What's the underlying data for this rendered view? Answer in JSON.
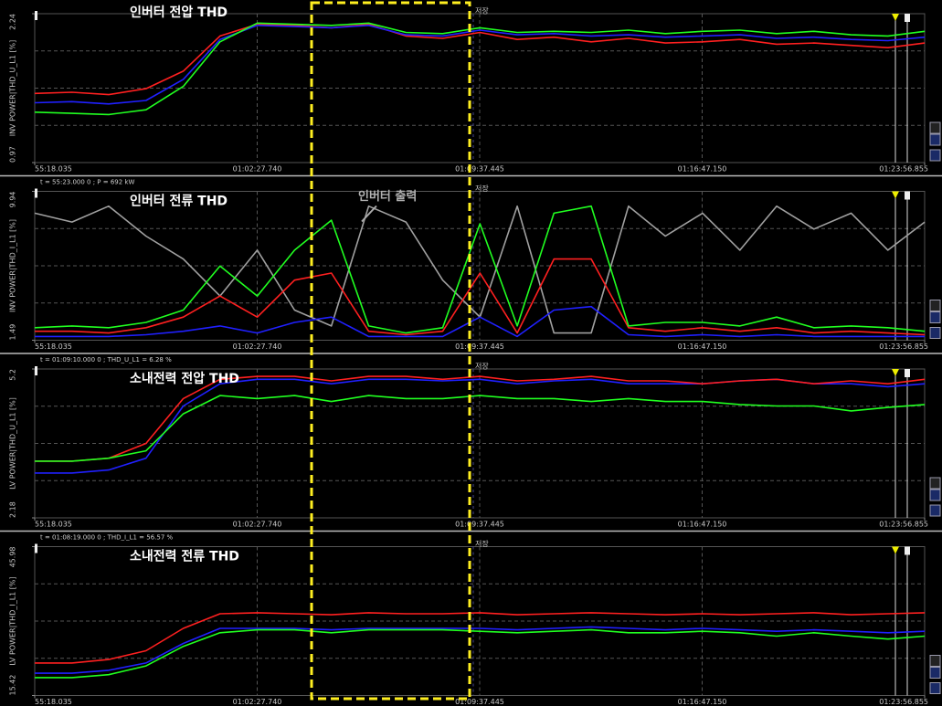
{
  "chart_data": [
    {
      "type": "line",
      "title": "인버터 전압 THD",
      "y_label": "INV POWER|THD_U_L1 [%]",
      "marker_label": "저장",
      "xlim": [
        3318.035,
        5036.855
      ],
      "xticks": [
        {
          "value": 3318.035,
          "label": "55:18.035"
        },
        {
          "value": 3747.74,
          "label": "01:02:27.740"
        },
        {
          "value": 4177.445,
          "label": "01:09:37.445"
        },
        {
          "value": 4607.15,
          "label": "01:16:47.150"
        },
        {
          "value": 5036.855,
          "label": "01:23:56.855"
        }
      ],
      "ylim": [
        0.97,
        2.24
      ],
      "yticks": [
        0.97,
        2.24
      ],
      "x": [
        3318,
        3390,
        3461,
        3533,
        3605,
        3676,
        3748,
        3820,
        3891,
        3963,
        4035,
        4106,
        4178,
        4250,
        4321,
        4393,
        4465,
        4536,
        4608,
        4680,
        4751,
        4823,
        4895,
        4966,
        5037
      ],
      "series": [
        {
          "color": "#ff2020",
          "values": [
            1.56,
            1.57,
            1.55,
            1.6,
            1.75,
            2.05,
            2.15,
            2.14,
            2.12,
            2.15,
            2.05,
            2.03,
            2.08,
            2.02,
            2.04,
            2.0,
            2.03,
            1.99,
            2.0,
            2.02,
            1.98,
            1.99,
            1.97,
            1.95,
            1.99
          ]
        },
        {
          "color": "#2020ff",
          "values": [
            1.48,
            1.49,
            1.47,
            1.5,
            1.68,
            2.02,
            2.14,
            2.13,
            2.12,
            2.14,
            2.06,
            2.05,
            2.1,
            2.06,
            2.07,
            2.05,
            2.06,
            2.04,
            2.05,
            2.06,
            2.03,
            2.04,
            2.02,
            2.01,
            2.04
          ]
        },
        {
          "color": "#20ff20",
          "values": [
            1.4,
            1.39,
            1.38,
            1.42,
            1.62,
            2.0,
            2.16,
            2.15,
            2.14,
            2.16,
            2.08,
            2.07,
            2.12,
            2.08,
            2.09,
            2.08,
            2.1,
            2.07,
            2.09,
            2.1,
            2.07,
            2.09,
            2.06,
            2.05,
            2.09
          ]
        }
      ]
    },
    {
      "type": "line",
      "title": "인버터 전류 THD",
      "y_label": "INV POWER|THD_I_L1 [%]",
      "marker_label": "저장",
      "cursor": "t = 55:23.000 0 ; P = 692 kW",
      "annotation": "인버터 출력",
      "xlim": [
        3318.035,
        5036.855
      ],
      "xticks": [
        {
          "value": 3318.035,
          "label": "55:18.035"
        },
        {
          "value": 3747.74,
          "label": "01:02:27.740"
        },
        {
          "value": 4177.445,
          "label": "01:09:37.445"
        },
        {
          "value": 4607.15,
          "label": "01:16:47.150"
        },
        {
          "value": 5036.855,
          "label": "01:23:56.855"
        }
      ],
      "ylim": [
        1.49,
        9.94
      ],
      "yticks": [
        1.49,
        9.94
      ],
      "x": [
        3318,
        3390,
        3461,
        3533,
        3605,
        3676,
        3748,
        3820,
        3891,
        3963,
        4035,
        4106,
        4178,
        4250,
        4321,
        4393,
        4465,
        4536,
        4608,
        4680,
        4751,
        4823,
        4895,
        4966,
        5037
      ],
      "series": [
        {
          "color": "#a0a0a0",
          "values": [
            8.7,
            8.2,
            9.1,
            7.4,
            6.1,
            4.0,
            6.6,
            3.2,
            2.3,
            9.1,
            8.2,
            4.9,
            2.8,
            9.1,
            1.9,
            1.9,
            9.1,
            7.4,
            8.7,
            6.6,
            9.1,
            7.8,
            8.7,
            6.6,
            8.2
          ]
        },
        {
          "color": "#2020ff",
          "values": [
            1.7,
            1.7,
            1.7,
            1.8,
            2.0,
            2.3,
            1.9,
            2.5,
            2.8,
            1.7,
            1.7,
            1.7,
            2.8,
            1.7,
            3.2,
            3.4,
            1.8,
            1.7,
            1.8,
            1.7,
            1.8,
            1.7,
            1.7,
            1.7,
            1.7
          ]
        },
        {
          "color": "#ff2020",
          "values": [
            2.0,
            2.0,
            1.9,
            2.2,
            2.8,
            4.0,
            2.8,
            4.9,
            5.3,
            2.0,
            1.8,
            2.0,
            5.3,
            1.9,
            6.1,
            6.1,
            2.2,
            2.0,
            2.2,
            2.0,
            2.2,
            1.9,
            2.0,
            1.9,
            1.8
          ]
        },
        {
          "color": "#20ff20",
          "values": [
            2.2,
            2.3,
            2.2,
            2.5,
            3.2,
            5.7,
            4.0,
            6.6,
            8.3,
            2.3,
            1.9,
            2.2,
            8.1,
            2.3,
            8.7,
            9.1,
            2.3,
            2.5,
            2.5,
            2.3,
            2.8,
            2.2,
            2.3,
            2.2,
            2.0
          ]
        }
      ]
    },
    {
      "type": "line",
      "title": "소내전력 전압 THD",
      "y_label": "LV POWER|THD_U_L1 [%]",
      "marker_label": "저장",
      "cursor": "t = 01:09:10.000 0 ; THD_U_L1 = 6.28 %",
      "xlim": [
        3318.035,
        5036.855
      ],
      "xticks": [
        {
          "value": 3318.035,
          "label": "55:18.035"
        },
        {
          "value": 3747.74,
          "label": "01:02:27.740"
        },
        {
          "value": 4177.445,
          "label": "01:09:37.445"
        },
        {
          "value": 4607.15,
          "label": "01:16:47.150"
        },
        {
          "value": 5036.855,
          "label": "01:23:56.855"
        }
      ],
      "ylim": [
        2.18,
        5.2
      ],
      "yticks": [
        2.18,
        5.2
      ],
      "x": [
        3318,
        3390,
        3461,
        3533,
        3605,
        3676,
        3748,
        3820,
        3891,
        3963,
        4035,
        4106,
        4178,
        4250,
        4321,
        4393,
        4465,
        4536,
        4608,
        4680,
        4751,
        4823,
        4895,
        4966,
        5037
      ],
      "series": [
        {
          "color": "#2020ff",
          "values": [
            3.09,
            3.09,
            3.15,
            3.39,
            4.45,
            4.9,
            4.99,
            4.99,
            4.9,
            4.99,
            4.99,
            4.96,
            4.99,
            4.9,
            4.96,
            4.99,
            4.9,
            4.9,
            4.9,
            4.96,
            4.99,
            4.9,
            4.9,
            4.84,
            4.9
          ]
        },
        {
          "color": "#ff2020",
          "values": [
            3.33,
            3.33,
            3.39,
            3.69,
            4.6,
            4.99,
            5.05,
            5.05,
            4.96,
            5.05,
            5.05,
            4.99,
            5.05,
            4.96,
            4.99,
            5.05,
            4.96,
            4.96,
            4.9,
            4.96,
            4.99,
            4.9,
            4.96,
            4.9,
            4.99
          ]
        },
        {
          "color": "#20ff20",
          "values": [
            3.33,
            3.33,
            3.39,
            3.54,
            4.29,
            4.66,
            4.6,
            4.66,
            4.54,
            4.66,
            4.6,
            4.6,
            4.66,
            4.6,
            4.6,
            4.54,
            4.6,
            4.54,
            4.54,
            4.48,
            4.45,
            4.45,
            4.35,
            4.42,
            4.48
          ]
        }
      ]
    },
    {
      "type": "line",
      "title": "소내전력 전류 THD",
      "y_label": "LV POWER|THD_I_L1 [%]",
      "marker_label": "저장",
      "cursor": "t = 01:08:19.000 0 ; THD_I_L1 = 56.57 %",
      "xlim": [
        3318.035,
        5036.855
      ],
      "xticks": [
        {
          "value": 3318.035,
          "label": "55:18.035"
        },
        {
          "value": 3747.74,
          "label": "01:02:27.740"
        },
        {
          "value": 4177.445,
          "label": "01:09:37.445"
        },
        {
          "value": 4607.15,
          "label": "01:16:47.150"
        },
        {
          "value": 5036.855,
          "label": "01:23:56.855"
        }
      ],
      "ylim": [
        15.42,
        45.98
      ],
      "yticks": [
        15.42,
        45.98
      ],
      "x": [
        3318,
        3390,
        3461,
        3533,
        3605,
        3676,
        3748,
        3820,
        3891,
        3963,
        4035,
        4106,
        4178,
        4250,
        4321,
        4393,
        4465,
        4536,
        4608,
        4680,
        4751,
        4823,
        4895,
        4966,
        5037
      ],
      "series": [
        {
          "color": "#2020ff",
          "values": [
            20.0,
            20.0,
            20.6,
            22.1,
            26.1,
            29.2,
            29.2,
            29.2,
            28.9,
            29.2,
            29.2,
            29.2,
            29.2,
            28.9,
            29.2,
            29.5,
            29.2,
            28.9,
            29.2,
            28.9,
            28.6,
            28.9,
            28.6,
            28.3,
            28.6
          ]
        },
        {
          "color": "#20ff20",
          "values": [
            19.1,
            19.1,
            19.7,
            21.5,
            25.5,
            28.3,
            28.9,
            28.9,
            28.3,
            28.9,
            28.9,
            28.9,
            28.6,
            28.3,
            28.6,
            28.9,
            28.3,
            28.3,
            28.6,
            28.3,
            27.6,
            28.3,
            27.6,
            27.0,
            27.6
          ]
        },
        {
          "color": "#ff2020",
          "values": [
            22.1,
            22.1,
            22.8,
            24.6,
            29.2,
            32.2,
            32.4,
            32.2,
            32.0,
            32.4,
            32.2,
            32.2,
            32.4,
            32.0,
            32.2,
            32.4,
            32.2,
            32.0,
            32.2,
            32.0,
            32.2,
            32.4,
            32.0,
            32.2,
            32.4
          ]
        }
      ]
    }
  ]
}
